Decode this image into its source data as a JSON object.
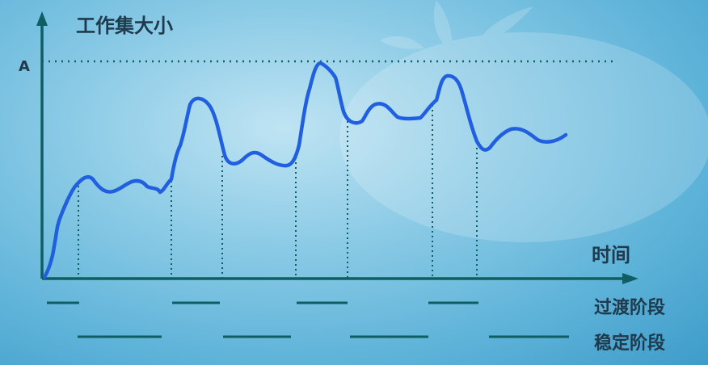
{
  "diagram": {
    "y_axis_label": "工作集大小",
    "peak_marker": "A",
    "x_axis_label": "时间",
    "legend": {
      "transition_label": "过渡阶段",
      "stable_label": "稳定阶段"
    }
  },
  "colors": {
    "curve": "#1f5fe0",
    "axis": "#0e5e63",
    "guides": "#0e5e63",
    "text": "#1e3a4c"
  }
}
